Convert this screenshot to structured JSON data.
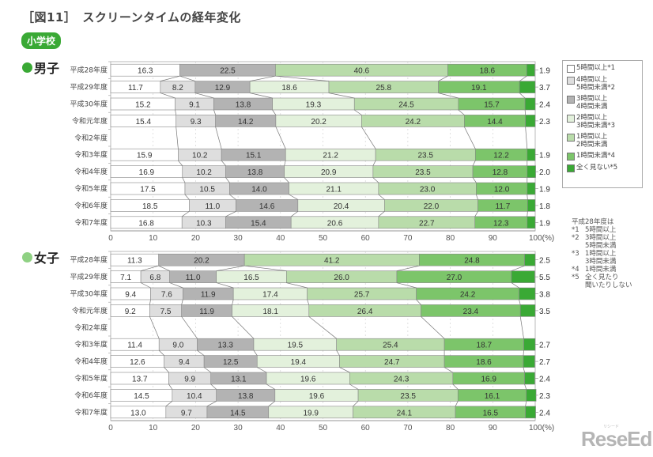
{
  "header": {
    "title": "［図11］　スクリーンタイムの経年変化",
    "badge": "小学校"
  },
  "groups": [
    {
      "label": "男子",
      "dot_color": "#3aa935"
    },
    {
      "label": "女子",
      "dot_color": "#8fd183"
    }
  ],
  "legend": {
    "items": [
      {
        "label": "5時間以上*1",
        "color": "#ffffff"
      },
      {
        "label": "4時間以上\n5時間未満*2",
        "color": "#dedede"
      },
      {
        "label": "3時間以上\n4時間未満",
        "color": "#b3b3b3"
      },
      {
        "label": "2時間以上\n3時間未満*3",
        "color": "#e3f1dc"
      },
      {
        "label": "1時間以上\n2時間未満",
        "color": "#b9dcaa"
      },
      {
        "label": "1時間未満*4",
        "color": "#7cc56a"
      },
      {
        "label": "全く見ない*5",
        "color": "#3aa935"
      }
    ]
  },
  "notes": {
    "heading": "平成28年度は",
    "items": [
      {
        "key": "*1",
        "text": "5時間以上"
      },
      {
        "key": "*2",
        "text": "3時間以上\n5時間未満"
      },
      {
        "key": "*3",
        "text": "1時間以上\n3時間未満"
      },
      {
        "key": "*4",
        "text": "1時間未満"
      },
      {
        "key": "*5",
        "text": "全く見たり\n聞いたりしない"
      }
    ]
  },
  "logo": {
    "text": "ReseEd",
    "sub": "リシード"
  },
  "chart_data": [
    {
      "type": "bar",
      "orientation": "horizontal-stacked-100",
      "title": "男子",
      "xlabel": "(%)",
      "xlim": [
        0,
        100
      ],
      "xticks": [
        0,
        10,
        20,
        30,
        40,
        50,
        60,
        70,
        80,
        90,
        100
      ],
      "xtick_suffix_last": "(%)",
      "categories": [
        "平成28年度",
        "平成29年度",
        "平成30年度",
        "令和元年度",
        "令和2年度",
        "令和3年度",
        "令和4年度",
        "令和5年度",
        "令和6年度",
        "令和7年度"
      ],
      "series": [
        {
          "name": "5時間以上",
          "values": [
            16.3,
            11.7,
            15.2,
            15.4,
            null,
            15.9,
            16.9,
            17.5,
            18.5,
            16.8
          ]
        },
        {
          "name": "4時間以上5時間未満",
          "values": [
            null,
            8.2,
            9.1,
            9.3,
            null,
            10.2,
            10.2,
            10.5,
            11.0,
            10.3
          ]
        },
        {
          "name": "3時間以上4時間未満",
          "values": [
            22.5,
            12.9,
            13.8,
            14.2,
            null,
            15.1,
            13.8,
            14.0,
            14.6,
            15.4
          ]
        },
        {
          "name": "2時間以上3時間未満",
          "values": [
            null,
            18.6,
            19.3,
            20.2,
            null,
            21.2,
            20.9,
            21.1,
            20.4,
            20.6
          ]
        },
        {
          "name": "1時間以上2時間未満",
          "values": [
            40.6,
            25.8,
            24.5,
            24.2,
            null,
            23.5,
            23.5,
            23.0,
            22.0,
            22.7
          ]
        },
        {
          "name": "1時間未満",
          "values": [
            18.6,
            19.1,
            15.7,
            14.4,
            null,
            12.2,
            12.8,
            12.0,
            11.7,
            12.3
          ]
        },
        {
          "name": "全く見ない",
          "values": [
            1.9,
            3.7,
            2.4,
            2.3,
            null,
            1.9,
            2.0,
            1.9,
            1.8,
            1.9
          ]
        }
      ]
    },
    {
      "type": "bar",
      "orientation": "horizontal-stacked-100",
      "title": "女子",
      "xlabel": "(%)",
      "xlim": [
        0,
        100
      ],
      "xticks": [
        0,
        10,
        20,
        30,
        40,
        50,
        60,
        70,
        80,
        90,
        100
      ],
      "xtick_suffix_last": "(%)",
      "categories": [
        "平成28年度",
        "平成29年度",
        "平成30年度",
        "令和元年度",
        "令和2年度",
        "令和3年度",
        "令和4年度",
        "令和5年度",
        "令和6年度",
        "令和7年度"
      ],
      "series": [
        {
          "name": "5時間以上",
          "values": [
            11.3,
            7.1,
            9.4,
            9.2,
            null,
            11.4,
            12.6,
            13.7,
            14.5,
            13.0
          ]
        },
        {
          "name": "4時間以上5時間未満",
          "values": [
            null,
            6.8,
            7.6,
            7.5,
            null,
            9.0,
            9.4,
            9.9,
            10.4,
            9.7
          ]
        },
        {
          "name": "3時間以上4時間未満",
          "values": [
            20.2,
            11.0,
            11.9,
            11.9,
            null,
            13.3,
            12.5,
            13.1,
            13.8,
            14.5
          ]
        },
        {
          "name": "2時間以上3時間未満",
          "values": [
            null,
            16.5,
            17.4,
            18.1,
            null,
            19.5,
            19.4,
            19.6,
            19.6,
            19.9
          ]
        },
        {
          "name": "1時間以上2時間未満",
          "values": [
            41.2,
            26.0,
            25.7,
            26.4,
            null,
            25.4,
            24.7,
            24.3,
            23.5,
            24.1
          ]
        },
        {
          "name": "1時間未満",
          "values": [
            24.8,
            27.0,
            24.2,
            23.4,
            null,
            18.7,
            18.6,
            16.9,
            16.1,
            16.5
          ]
        },
        {
          "name": "全く見ない",
          "values": [
            2.5,
            5.5,
            3.8,
            3.5,
            null,
            2.7,
            2.7,
            2.4,
            2.3,
            2.4
          ]
        }
      ]
    }
  ]
}
